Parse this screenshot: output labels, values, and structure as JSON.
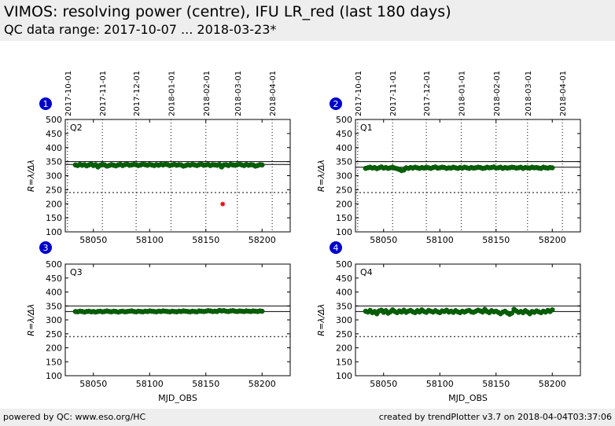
{
  "header": {
    "title": "VIMOS: resolving power (centre), IFU LR_red (last 180 days)",
    "subtitle": "QC data range: 2017-10-07 ... 2018-03-23*"
  },
  "footer": {
    "left": "powered by QC: www.eso.org/HC",
    "right": "created by trendPlotter v3.7 on 2018-04-04T03:37:06"
  },
  "chart_data": [
    {
      "type": "scatter",
      "badge": "1",
      "quadrant": "Q2",
      "ylabel": "R=λ/Δλ",
      "xlabel": "",
      "ylim": [
        100,
        500
      ],
      "xlim": [
        58025,
        58225
      ],
      "x_ticks": [
        58050,
        58100,
        58150,
        58200
      ],
      "y_ticks": [
        100,
        150,
        200,
        250,
        300,
        350,
        400,
        450,
        500
      ],
      "date_ticks": [
        "2017-10-01",
        "2017-11-01",
        "2017-12-01",
        "2018-01-01",
        "2018-02-01",
        "2018-03-01",
        "2018-04-01"
      ],
      "date_tick_mjd": [
        58027,
        58058,
        58088,
        58119,
        58150,
        58178,
        58209
      ],
      "reference_lines": [
        340,
        350
      ],
      "threshold_line": 240,
      "series": [
        {
          "color": "#006400",
          "x": [
            58034,
            58036,
            58038,
            58040,
            58042,
            58044,
            58046,
            58048,
            58050,
            58052,
            58054,
            58056,
            58058,
            58060,
            58062,
            58064,
            58066,
            58068,
            58070,
            58072,
            58074,
            58076,
            58078,
            58080,
            58082,
            58084,
            58086,
            58088,
            58090,
            58092,
            58094,
            58096,
            58098,
            58100,
            58102,
            58104,
            58106,
            58108,
            58110,
            58112,
            58114,
            58116,
            58118,
            58120,
            58122,
            58124,
            58126,
            58128,
            58130,
            58132,
            58134,
            58136,
            58138,
            58140,
            58142,
            58144,
            58146,
            58148,
            58150,
            58152,
            58154,
            58156,
            58158,
            58160,
            58162,
            58164,
            58166,
            58168,
            58170,
            58172,
            58174,
            58176,
            58178,
            58180,
            58182,
            58184,
            58186,
            58188,
            58190,
            58192,
            58194,
            58196,
            58198,
            58200
          ],
          "y": [
            338,
            336,
            340,
            337,
            339,
            335,
            338,
            341,
            336,
            339,
            331,
            337,
            340,
            338,
            334,
            336,
            339,
            337,
            335,
            338,
            340,
            336,
            339,
            341,
            337,
            338,
            340,
            339,
            336,
            338,
            341,
            339,
            337,
            340,
            338,
            336,
            339,
            337,
            340,
            338,
            341,
            339,
            336,
            338,
            340,
            337,
            339,
            338,
            334,
            336,
            339,
            337,
            340,
            338,
            336,
            339,
            341,
            337,
            338,
            340,
            336,
            339,
            338,
            337,
            340,
            331,
            338,
            339,
            336,
            340,
            338,
            337,
            339,
            341,
            338,
            336,
            340,
            337,
            339,
            338,
            334,
            336,
            339,
            338
          ]
        },
        {
          "color": "#ee0000",
          "x": [
            58165
          ],
          "y": [
            199
          ]
        }
      ]
    },
    {
      "type": "scatter",
      "badge": "2",
      "quadrant": "Q1",
      "ylabel": "R=λ/Δλ",
      "xlabel": "",
      "ylim": [
        100,
        500
      ],
      "xlim": [
        58025,
        58225
      ],
      "x_ticks": [
        58050,
        58100,
        58150,
        58200
      ],
      "y_ticks": [
        100,
        150,
        200,
        250,
        300,
        350,
        400,
        450,
        500
      ],
      "date_ticks": [
        "2017-10-01",
        "2017-11-01",
        "2017-12-01",
        "2018-01-01",
        "2018-02-01",
        "2018-03-01",
        "2018-04-01"
      ],
      "date_tick_mjd": [
        58027,
        58058,
        58088,
        58119,
        58150,
        58178,
        58209
      ],
      "reference_lines": [
        330,
        350
      ],
      "threshold_line": 240,
      "series": [
        {
          "color": "#006400",
          "x": [
            58034,
            58036,
            58038,
            58040,
            58042,
            58044,
            58046,
            58048,
            58050,
            58052,
            58054,
            58056,
            58058,
            58060,
            58062,
            58064,
            58066,
            58068,
            58070,
            58072,
            58074,
            58076,
            58078,
            58080,
            58082,
            58084,
            58086,
            58088,
            58090,
            58092,
            58094,
            58096,
            58098,
            58100,
            58102,
            58104,
            58106,
            58108,
            58110,
            58112,
            58114,
            58116,
            58118,
            58120,
            58122,
            58124,
            58126,
            58128,
            58130,
            58132,
            58134,
            58136,
            58138,
            58140,
            58142,
            58144,
            58146,
            58148,
            58150,
            58152,
            58154,
            58156,
            58158,
            58160,
            58162,
            58164,
            58166,
            58168,
            58170,
            58172,
            58174,
            58176,
            58178,
            58180,
            58182,
            58184,
            58186,
            58188,
            58190,
            58192,
            58194,
            58196,
            58198,
            58200
          ],
          "y": [
            326,
            328,
            330,
            327,
            329,
            325,
            328,
            331,
            327,
            329,
            326,
            328,
            330,
            327,
            325,
            322,
            318,
            320,
            328,
            326,
            329,
            327,
            330,
            328,
            326,
            329,
            327,
            330,
            328,
            326,
            329,
            331,
            327,
            328,
            330,
            329,
            326,
            328,
            327,
            330,
            328,
            326,
            329,
            327,
            330,
            328,
            326,
            329,
            327,
            328,
            330,
            329,
            326,
            327,
            330,
            328,
            329,
            331,
            327,
            328,
            330,
            326,
            329,
            327,
            328,
            330,
            329,
            327,
            328,
            330,
            326,
            329,
            328,
            327,
            330,
            328,
            329,
            327,
            326,
            330,
            328,
            327,
            329,
            328
          ]
        }
      ]
    },
    {
      "type": "scatter",
      "badge": "3",
      "quadrant": "Q3",
      "ylabel": "R=λ/Δλ",
      "xlabel": "MJD_OBS",
      "ylim": [
        100,
        500
      ],
      "xlim": [
        58025,
        58225
      ],
      "x_ticks": [
        58050,
        58100,
        58150,
        58200
      ],
      "y_ticks": [
        100,
        150,
        200,
        250,
        300,
        350,
        400,
        450,
        500
      ],
      "reference_lines": [
        330,
        350
      ],
      "threshold_line": 240,
      "series": [
        {
          "color": "#006400",
          "x": [
            58034,
            58036,
            58038,
            58040,
            58042,
            58044,
            58046,
            58048,
            58050,
            58052,
            58054,
            58056,
            58058,
            58060,
            58062,
            58064,
            58066,
            58068,
            58070,
            58072,
            58074,
            58076,
            58078,
            58080,
            58082,
            58084,
            58086,
            58088,
            58090,
            58092,
            58094,
            58096,
            58098,
            58100,
            58102,
            58104,
            58106,
            58108,
            58110,
            58112,
            58114,
            58116,
            58118,
            58120,
            58122,
            58124,
            58126,
            58128,
            58130,
            58132,
            58134,
            58136,
            58138,
            58140,
            58142,
            58144,
            58146,
            58148,
            58150,
            58152,
            58154,
            58156,
            58158,
            58160,
            58162,
            58164,
            58166,
            58168,
            58170,
            58172,
            58174,
            58176,
            58178,
            58180,
            58182,
            58184,
            58186,
            58188,
            58190,
            58192,
            58194,
            58196,
            58198,
            58200
          ],
          "y": [
            330,
            329,
            331,
            330,
            328,
            330,
            331,
            329,
            330,
            328,
            330,
            331,
            329,
            330,
            332,
            330,
            329,
            331,
            330,
            328,
            330,
            331,
            329,
            330,
            331,
            332,
            330,
            329,
            331,
            330,
            329,
            331,
            330,
            332,
            331,
            330,
            329,
            331,
            330,
            332,
            331,
            330,
            329,
            331,
            330,
            329,
            331,
            330,
            332,
            331,
            330,
            329,
            331,
            330,
            329,
            332,
            331,
            330,
            331,
            333,
            332,
            330,
            331,
            330,
            334,
            332,
            333,
            331,
            330,
            332,
            333,
            331,
            330,
            332,
            331,
            330,
            332,
            331,
            330,
            332,
            331,
            330,
            332,
            331
          ]
        }
      ]
    },
    {
      "type": "scatter",
      "badge": "4",
      "quadrant": "Q4",
      "ylabel": "R=λ/Δλ",
      "xlabel": "MJD_OBS",
      "ylim": [
        100,
        500
      ],
      "xlim": [
        58025,
        58225
      ],
      "x_ticks": [
        58050,
        58100,
        58150,
        58200
      ],
      "y_ticks": [
        100,
        150,
        200,
        250,
        300,
        350,
        400,
        450,
        500
      ],
      "reference_lines": [
        330,
        350
      ],
      "threshold_line": 240,
      "series": [
        {
          "color": "#006400",
          "x": [
            58034,
            58036,
            58038,
            58040,
            58042,
            58044,
            58046,
            58048,
            58050,
            58052,
            58054,
            58056,
            58058,
            58060,
            58062,
            58064,
            58066,
            58068,
            58070,
            58072,
            58074,
            58076,
            58078,
            58080,
            58082,
            58084,
            58086,
            58088,
            58090,
            58092,
            58094,
            58096,
            58098,
            58100,
            58102,
            58104,
            58106,
            58108,
            58110,
            58112,
            58114,
            58116,
            58118,
            58120,
            58122,
            58124,
            58126,
            58128,
            58130,
            58132,
            58134,
            58136,
            58138,
            58140,
            58142,
            58144,
            58146,
            58148,
            58150,
            58152,
            58154,
            58156,
            58158,
            58160,
            58162,
            58164,
            58166,
            58168,
            58170,
            58172,
            58174,
            58176,
            58178,
            58180,
            58182,
            58184,
            58186,
            58188,
            58190,
            58192,
            58194,
            58196,
            58198,
            58200
          ],
          "y": [
            331,
            328,
            334,
            326,
            330,
            322,
            332,
            335,
            327,
            333,
            324,
            329,
            336,
            330,
            326,
            332,
            328,
            335,
            327,
            331,
            334,
            329,
            326,
            333,
            328,
            336,
            330,
            327,
            334,
            331,
            328,
            333,
            329,
            326,
            332,
            330,
            335,
            328,
            331,
            327,
            333,
            329,
            326,
            331,
            328,
            332,
            334,
            329,
            327,
            331,
            335,
            332,
            328,
            338,
            330,
            326,
            333,
            329,
            331,
            327,
            322,
            328,
            331,
            325,
            320,
            324,
            338,
            332,
            327,
            330,
            326,
            333,
            328,
            322,
            330,
            327,
            332,
            329,
            326,
            331,
            328,
            334,
            330,
            336
          ]
        }
      ]
    }
  ]
}
